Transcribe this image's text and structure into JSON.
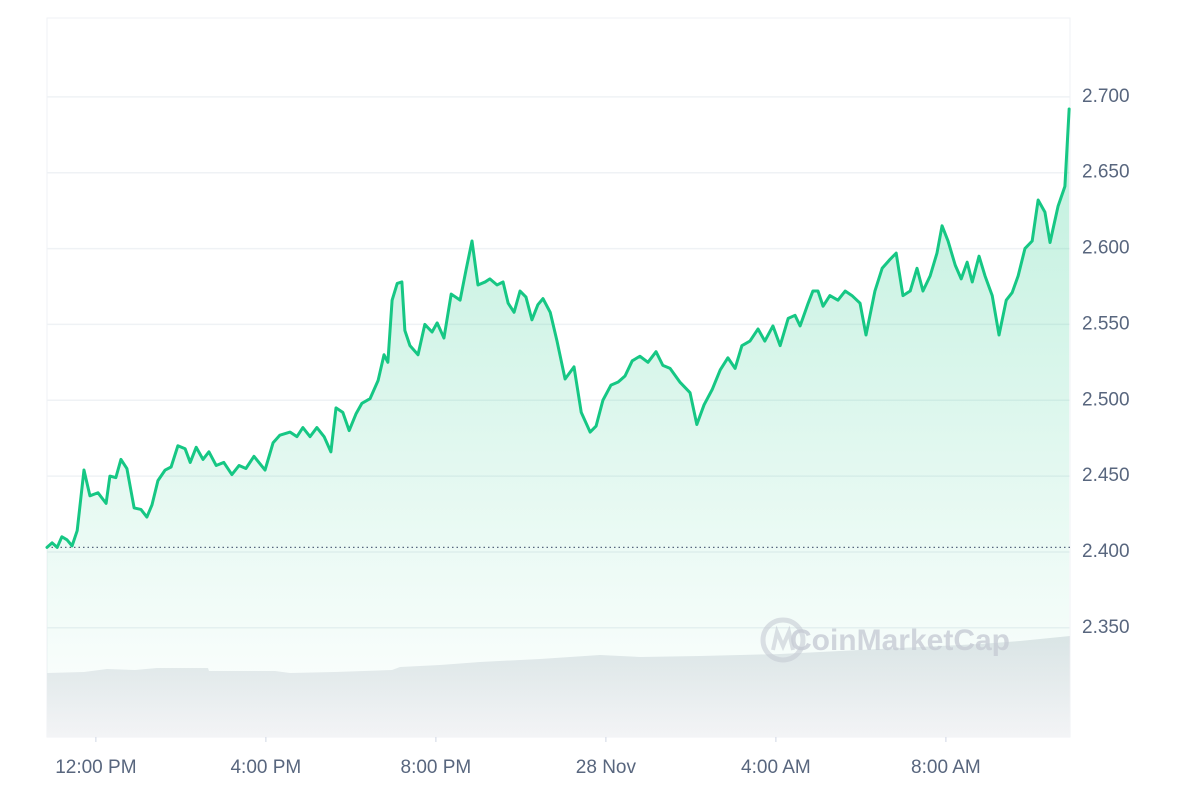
{
  "chart_data": {
    "type": "area-line",
    "color": "#16c784",
    "watermark": "CoinMarketCap",
    "grid": true,
    "xlim": [
      10.85,
      34.92
    ],
    "xticks": [
      {
        "value": 12,
        "label": "12:00 PM"
      },
      {
        "value": 16,
        "label": "4:00 PM"
      },
      {
        "value": 20,
        "label": "8:00 PM"
      },
      {
        "value": 24,
        "label": "28 Nov"
      },
      {
        "value": 28,
        "label": "4:00 AM"
      },
      {
        "value": 32,
        "label": "8:00 AM"
      }
    ],
    "ylim": [
      2.278,
      2.752
    ],
    "yticks": [
      {
        "value": 2.35,
        "label": "2.350"
      },
      {
        "value": 2.4,
        "label": "2.400"
      },
      {
        "value": 2.45,
        "label": "2.450"
      },
      {
        "value": 2.5,
        "label": "2.500"
      },
      {
        "value": 2.55,
        "label": "2.550"
      },
      {
        "value": 2.6,
        "label": "2.600"
      },
      {
        "value": 2.65,
        "label": "2.650"
      },
      {
        "value": 2.7,
        "label": "2.700"
      }
    ],
    "x": [
      10.85,
      10.97,
      11.09,
      11.2,
      11.32,
      11.44,
      11.56,
      11.72,
      11.86,
      12.05,
      12.24,
      12.33,
      12.47,
      12.59,
      12.73,
      12.9,
      13.06,
      13.2,
      13.32,
      13.46,
      13.63,
      13.77,
      13.93,
      14.1,
      14.22,
      14.36,
      14.52,
      14.66,
      14.83,
      15.01,
      15.2,
      15.37,
      15.53,
      15.72,
      15.98,
      16.17,
      16.33,
      16.57,
      16.73,
      16.87,
      17.04,
      17.2,
      17.37,
      17.53,
      17.65,
      17.81,
      17.96,
      18.12,
      18.26,
      18.45,
      18.64,
      18.78,
      18.87,
      18.97,
      19.09,
      19.2,
      19.27,
      19.39,
      19.58,
      19.74,
      19.91,
      20.03,
      20.19,
      20.36,
      20.57,
      20.71,
      20.85,
      20.99,
      21.16,
      21.27,
      21.44,
      21.58,
      21.7,
      21.84,
      21.98,
      22.12,
      22.26,
      22.4,
      22.52,
      22.69,
      22.85,
      23.04,
      23.25,
      23.42,
      23.63,
      23.77,
      23.93,
      24.12,
      24.29,
      24.45,
      24.62,
      24.8,
      24.99,
      25.18,
      25.34,
      25.51,
      25.74,
      25.98,
      26.14,
      26.31,
      26.5,
      26.69,
      26.87,
      27.04,
      27.2,
      27.39,
      27.58,
      27.74,
      27.93,
      28.1,
      28.29,
      28.45,
      28.57,
      28.76,
      28.87,
      28.99,
      29.11,
      29.27,
      29.46,
      29.63,
      29.79,
      29.98,
      30.12,
      30.33,
      30.5,
      30.69,
      30.83,
      30.99,
      31.16,
      31.32,
      31.46,
      31.63,
      31.79,
      31.91,
      32.05,
      32.22,
      32.36,
      32.5,
      32.62,
      32.78,
      32.92,
      33.09,
      33.25,
      33.42,
      33.56,
      33.7,
      33.86,
      34.03,
      34.17,
      34.33,
      34.45,
      34.64,
      34.8,
      34.9
    ],
    "values": [
      2.403,
      2.406,
      2.403,
      2.41,
      2.408,
      2.404,
      2.414,
      2.454,
      2.437,
      2.439,
      2.432,
      2.45,
      2.449,
      2.461,
      2.455,
      2.429,
      2.428,
      2.423,
      2.431,
      2.447,
      2.454,
      2.456,
      2.47,
      2.468,
      2.459,
      2.469,
      2.461,
      2.466,
      2.457,
      2.459,
      2.451,
      2.457,
      2.455,
      2.463,
      2.454,
      2.472,
      2.477,
      2.479,
      2.476,
      2.482,
      2.476,
      2.482,
      2.476,
      2.466,
      2.495,
      2.492,
      2.48,
      2.491,
      2.498,
      2.501,
      2.513,
      2.53,
      2.525,
      2.566,
      2.577,
      2.578,
      2.546,
      2.536,
      2.53,
      2.55,
      2.545,
      2.551,
      2.541,
      2.57,
      2.566,
      2.586,
      2.605,
      2.576,
      2.578,
      2.58,
      2.576,
      2.578,
      2.564,
      2.558,
      2.572,
      2.568,
      2.553,
      2.563,
      2.567,
      2.558,
      2.539,
      2.514,
      2.522,
      2.492,
      2.479,
      2.483,
      2.5,
      2.51,
      2.512,
      2.516,
      2.526,
      2.529,
      2.525,
      2.532,
      2.523,
      2.521,
      2.512,
      2.505,
      2.484,
      2.497,
      2.507,
      2.52,
      2.528,
      2.521,
      2.536,
      2.539,
      2.547,
      2.539,
      2.549,
      2.536,
      2.554,
      2.556,
      2.549,
      2.564,
      2.572,
      2.572,
      2.562,
      2.569,
      2.566,
      2.572,
      2.569,
      2.564,
      2.543,
      2.572,
      2.587,
      2.593,
      2.597,
      2.569,
      2.572,
      2.587,
      2.572,
      2.582,
      2.597,
      2.615,
      2.605,
      2.589,
      2.58,
      2.591,
      2.578,
      2.595,
      2.582,
      2.569,
      2.543,
      2.566,
      2.571,
      2.582,
      2.6,
      2.605,
      2.632,
      2.624,
      2.604,
      2.628,
      2.641,
      2.692
    ]
  }
}
